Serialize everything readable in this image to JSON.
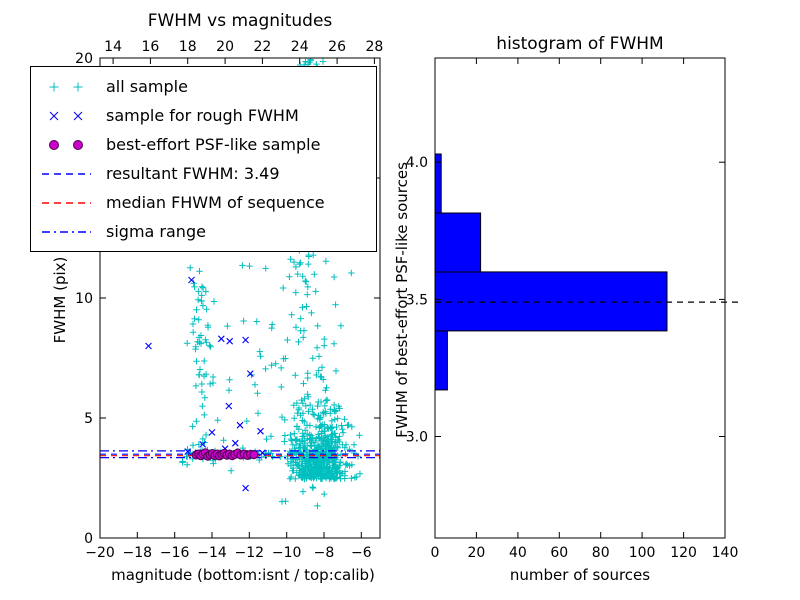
{
  "figure_style": {
    "background": "#ffffff",
    "axis_color": "#000000",
    "text_color": "#000000"
  },
  "legend": {
    "entries": [
      {
        "label": "all sample",
        "marker": "plus2",
        "color": "#00bfbf"
      },
      {
        "label": "sample for rough FWHM",
        "marker": "x2",
        "color": "#0000ff"
      },
      {
        "label": "best-effort PSF-like sample",
        "marker": "circle2",
        "color": "#cc00cc",
        "edge": "#4b004b"
      },
      {
        "label": "resultant FWHM: 3.49",
        "marker": "dashed",
        "color": "#0000ff"
      },
      {
        "label": "median FHWM of sequence",
        "marker": "dashed",
        "color": "#ff0000"
      },
      {
        "label": "sigma range",
        "marker": "dashdot",
        "color": "#0000ff"
      }
    ]
  },
  "chart_data": [
    {
      "type": "scatter",
      "title": "FWHM vs magnitudes",
      "xlabel": "magnitude (bottom:isnt / top:calib)",
      "ylabel": "FWHM (pix)",
      "xlim": [
        -20,
        -5
      ],
      "ylim": [
        0,
        20
      ],
      "top_xlim": [
        13.3,
        28.3
      ],
      "grid": false,
      "x_ticks": {
        "values": [
          -20,
          -18,
          -16,
          -14,
          -12,
          -10,
          -8,
          -6
        ],
        "labels": [
          "−20",
          "−18",
          "−16",
          "−14",
          "−12",
          "−10",
          "−8",
          "−6"
        ]
      },
      "top_x_ticks": {
        "values": [
          14,
          16,
          18,
          20,
          22,
          24,
          26,
          28
        ],
        "labels": [
          "14",
          "16",
          "18",
          "20",
          "22",
          "24",
          "26",
          "28"
        ]
      },
      "y_ticks": {
        "values": [
          0,
          5,
          10,
          15,
          20
        ],
        "labels": [
          "0",
          "5",
          "10",
          "15",
          "20"
        ]
      },
      "series": [
        {
          "name": "all sample",
          "marker": "plus",
          "color": "#00bfbf",
          "clusters": [
            {
              "n": 520,
              "x": {
                "dist": "gauss",
                "mu": -8.25,
                "sd": 0.72
              },
              "y": {
                "dist": "halfgauss",
                "base": 2.45,
                "sd": 1.35
              }
            },
            {
              "n": 135,
              "x": {
                "dist": "gauss",
                "mu": -8.7,
                "sd": 0.75
              },
              "y": {
                "dist": "uniform",
                "lo": 5,
                "hi": 20
              }
            },
            {
              "n": 35,
              "x": {
                "dist": "gauss",
                "mu": -8.9,
                "sd": 0.4
              },
              "y": {
                "dist": "uniform",
                "lo": 18.7,
                "hi": 20
              }
            },
            {
              "n": 55,
              "x": {
                "dist": "gauss",
                "mu": -14.55,
                "sd": 0.28
              },
              "y": {
                "dist": "uniform",
                "lo": 3.6,
                "hi": 11.3
              }
            },
            {
              "n": 90,
              "x": {
                "dist": "uniform",
                "lo": -15.6,
                "hi": -7.2
              },
              "y": {
                "dist": "gauss",
                "mu": 3.45,
                "sd": 0.12
              }
            },
            {
              "n": 28,
              "x": {
                "dist": "uniform",
                "lo": -13.2,
                "hi": -9.6
              },
              "y": {
                "dist": "uniform",
                "lo": 4,
                "hi": 13
              }
            },
            {
              "n": 22,
              "x": {
                "dist": "uniform",
                "lo": -16.3,
                "hi": -6.3
              },
              "y": {
                "dist": "uniform",
                "lo": 2.2,
                "hi": 18.5
              }
            },
            {
              "n": 8,
              "x": {
                "dist": "uniform",
                "lo": -10.6,
                "hi": -7.4
              },
              "y": {
                "dist": "uniform",
                "lo": 1.3,
                "hi": 2.5
              }
            }
          ]
        },
        {
          "name": "sample for rough FWHM",
          "marker": "x",
          "color": "#0000ff",
          "points": [
            [
              -17.4,
              8.0
            ],
            [
              -15.1,
              10.75
            ],
            [
              -13.5,
              8.3
            ],
            [
              -13.05,
              8.2
            ],
            [
              -12.2,
              8.25
            ],
            [
              -11.95,
              6.85
            ],
            [
              -13.1,
              5.5
            ],
            [
              -12.5,
              4.7
            ],
            [
              -14.0,
              4.4
            ],
            [
              -11.4,
              4.45
            ],
            [
              -14.5,
              3.9
            ],
            [
              -13.3,
              3.72
            ],
            [
              -12.75,
              3.95
            ],
            [
              -15.3,
              3.6
            ],
            [
              -14.75,
              3.55
            ],
            [
              -14.2,
              3.5
            ],
            [
              -13.65,
              3.45
            ],
            [
              -13.0,
              3.52
            ],
            [
              -12.45,
              3.55
            ],
            [
              -11.85,
              3.5
            ],
            [
              -11.3,
              3.55
            ],
            [
              -12.2,
              2.08
            ]
          ]
        },
        {
          "name": "best-effort PSF-like sample",
          "marker": "circle",
          "fill": "#cc00cc",
          "edge": "#4b004b",
          "points": [
            [
              -14.85,
              3.46
            ],
            [
              -14.72,
              3.5
            ],
            [
              -14.6,
              3.43
            ],
            [
              -14.48,
              3.49
            ],
            [
              -14.36,
              3.55
            ],
            [
              -14.22,
              3.41
            ],
            [
              -14.1,
              3.47
            ],
            [
              -13.98,
              3.52
            ],
            [
              -13.85,
              3.44
            ],
            [
              -13.72,
              3.5
            ],
            [
              -13.6,
              3.42
            ],
            [
              -13.47,
              3.48
            ],
            [
              -13.34,
              3.53
            ],
            [
              -13.2,
              3.45
            ],
            [
              -13.06,
              3.5
            ],
            [
              -12.92,
              3.43
            ],
            [
              -12.78,
              3.48
            ],
            [
              -12.62,
              3.54
            ],
            [
              -12.45,
              3.46
            ],
            [
              -12.28,
              3.5
            ],
            [
              -12.1,
              3.44
            ],
            [
              -11.93,
              3.49
            ],
            [
              -11.76,
              3.47
            ]
          ]
        }
      ],
      "hlines": [
        {
          "name": "sigma range upper",
          "y": 3.63,
          "color": "#0000ff",
          "style": "dashdot"
        },
        {
          "name": "resultant FWHM",
          "y": 3.49,
          "color": "#0000ff",
          "style": "dashed"
        },
        {
          "name": "median FHWM of sequence",
          "y": 3.43,
          "color": "#ff0000",
          "style": "dashed"
        },
        {
          "name": "sigma range lower",
          "y": 3.35,
          "color": "#0000ff",
          "style": "dashdot"
        }
      ],
      "resultant_fwhm": 3.49
    },
    {
      "type": "bar",
      "orientation": "horizontal",
      "title": "histogram of FWHM",
      "xlabel": "number of sources",
      "ylabel": "FWHM of best-effort PSF-like sources",
      "xlim": [
        0,
        140
      ],
      "ylim": [
        2.63,
        4.38
      ],
      "grid": false,
      "x_ticks": {
        "values": [
          0,
          20,
          40,
          60,
          80,
          100,
          120,
          140
        ],
        "labels": [
          "0",
          "20",
          "40",
          "60",
          "80",
          "100",
          "120",
          "140"
        ]
      },
      "y_ticks": {
        "values": [
          3.0,
          3.5,
          4.0
        ],
        "labels": [
          "3.0",
          "3.5",
          "4.0"
        ]
      },
      "fill": "#0000ff",
      "edge": "#000000",
      "bars": [
        {
          "lo": 3.17,
          "hi": 3.385,
          "count": 6
        },
        {
          "lo": 3.385,
          "hi": 3.6,
          "count": 112
        },
        {
          "lo": 3.6,
          "hi": 3.815,
          "count": 22
        },
        {
          "lo": 3.815,
          "hi": 4.03,
          "count": 3
        }
      ],
      "hline": {
        "y": 3.49,
        "color": "#000000",
        "style": "dashed"
      }
    }
  ]
}
